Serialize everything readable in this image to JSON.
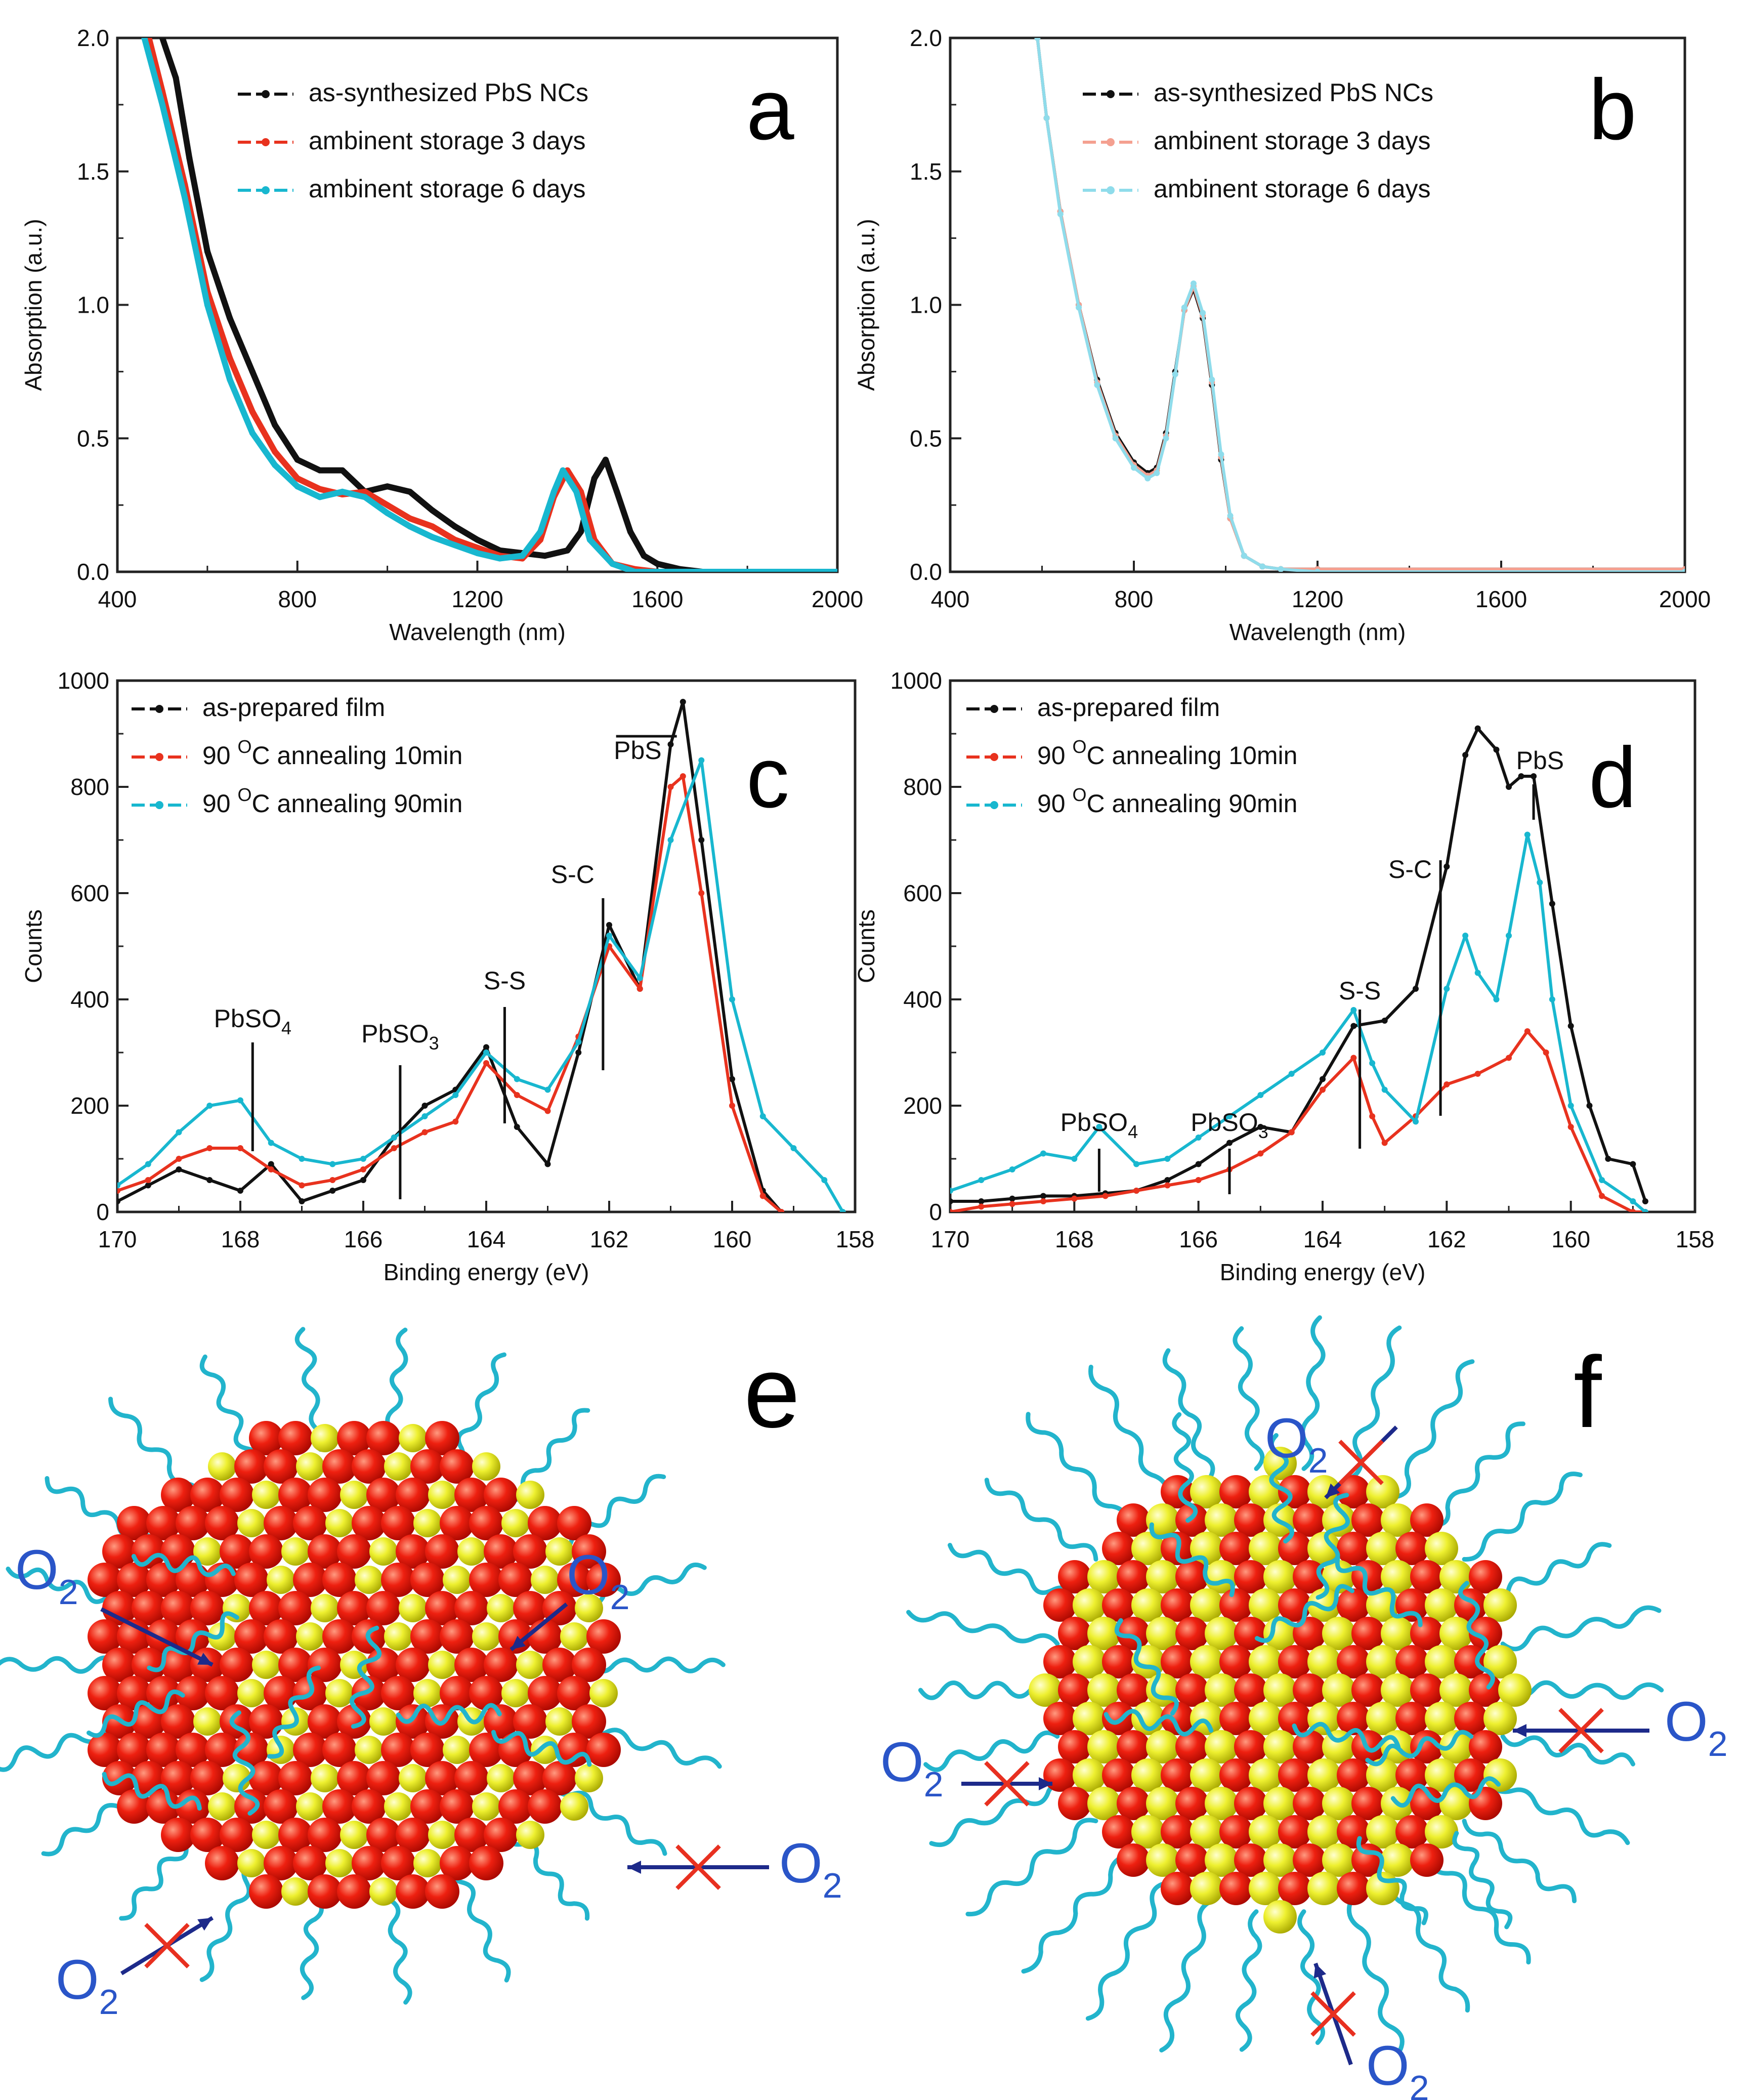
{
  "colors": {
    "black": "#111111",
    "red": "#e8321e",
    "cyan": "#18b7cf",
    "frame": "#222222",
    "pale_red": "#f4a090",
    "pale_cyan": "#8fdceb",
    "sphere_red": "#e8140c",
    "sphere_yellow": "#eef030",
    "arrow": "#1d2a8a",
    "o2_text": "#2a55c8"
  },
  "chart_data": [
    {
      "id": "a",
      "type": "line",
      "panel_label": "a",
      "xlabel": "Wavelength (nm)",
      "ylabel": "Absorption (a.u.)",
      "xlim": [
        400,
        2000
      ],
      "ylim": [
        0,
        2.0
      ],
      "x_ticks": [
        "400",
        "800",
        "1200",
        "1600",
        "2000"
      ],
      "y_ticks": [
        "0.0",
        "0.5",
        "1.0",
        "1.5",
        "2.0"
      ],
      "series": [
        {
          "name": "as-synthesized PbS NCs",
          "color": "black",
          "x": [
            500,
            530,
            560,
            600,
            650,
            700,
            750,
            800,
            850,
            900,
            950,
            1000,
            1050,
            1100,
            1150,
            1200,
            1250,
            1300,
            1350,
            1400,
            1430,
            1460,
            1485,
            1510,
            1540,
            1570,
            1600,
            1650,
            1700,
            2000
          ],
          "y": [
            2.0,
            1.85,
            1.55,
            1.2,
            0.95,
            0.75,
            0.55,
            0.42,
            0.38,
            0.38,
            0.3,
            0.32,
            0.3,
            0.23,
            0.17,
            0.12,
            0.08,
            0.07,
            0.06,
            0.08,
            0.15,
            0.35,
            0.42,
            0.3,
            0.15,
            0.06,
            0.03,
            0.01,
            0.0,
            0.0
          ]
        },
        {
          "name": "ambinent storage 3 days",
          "color": "red",
          "x": [
            470,
            500,
            550,
            600,
            650,
            700,
            750,
            800,
            850,
            900,
            950,
            1000,
            1050,
            1100,
            1150,
            1200,
            1250,
            1300,
            1340,
            1370,
            1400,
            1430,
            1460,
            1500,
            1550,
            1600,
            2000
          ],
          "y": [
            2.0,
            1.8,
            1.45,
            1.05,
            0.8,
            0.6,
            0.45,
            0.35,
            0.31,
            0.29,
            0.3,
            0.25,
            0.2,
            0.17,
            0.12,
            0.09,
            0.06,
            0.05,
            0.12,
            0.28,
            0.38,
            0.3,
            0.12,
            0.03,
            0.01,
            0.0,
            0.0
          ]
        },
        {
          "name": "ambinent storage 6 days",
          "color": "cyan",
          "x": [
            460,
            500,
            550,
            600,
            650,
            700,
            750,
            800,
            850,
            900,
            950,
            1000,
            1050,
            1100,
            1150,
            1200,
            1250,
            1300,
            1340,
            1370,
            1390,
            1420,
            1450,
            1500,
            1550,
            2000
          ],
          "y": [
            2.0,
            1.75,
            1.4,
            1.0,
            0.72,
            0.52,
            0.4,
            0.32,
            0.28,
            0.3,
            0.28,
            0.22,
            0.17,
            0.13,
            0.1,
            0.07,
            0.05,
            0.06,
            0.15,
            0.3,
            0.38,
            0.3,
            0.12,
            0.03,
            0.0,
            0.0
          ]
        }
      ]
    },
    {
      "id": "b",
      "type": "line",
      "panel_label": "b",
      "xlabel": "Wavelength (nm)",
      "ylabel": "Absorption (a.u.)",
      "xlim": [
        400,
        2000
      ],
      "ylim": [
        0,
        2.0
      ],
      "x_ticks": [
        "400",
        "800",
        "1200",
        "1600",
        "2000"
      ],
      "y_ticks": [
        "0.0",
        "0.5",
        "1.0",
        "1.5",
        "2.0"
      ],
      "series": [
        {
          "name": "as-synthesized PbS NCs",
          "color": "black",
          "x": [
            590,
            610,
            640,
            680,
            720,
            760,
            800,
            830,
            850,
            870,
            890,
            910,
            930,
            950,
            970,
            990,
            1010,
            1040,
            1080,
            1120,
            1200,
            2000
          ],
          "y": [
            2.0,
            1.7,
            1.35,
            1.0,
            0.72,
            0.52,
            0.41,
            0.37,
            0.39,
            0.52,
            0.75,
            0.98,
            1.06,
            0.95,
            0.7,
            0.42,
            0.2,
            0.06,
            0.02,
            0.01,
            0.01,
            0.01
          ]
        },
        {
          "name": "ambinent storage 3 days",
          "color": "pale_red",
          "x": [
            590,
            610,
            640,
            680,
            720,
            760,
            800,
            830,
            850,
            870,
            890,
            910,
            930,
            950,
            970,
            990,
            1010,
            1040,
            1080,
            1120,
            1200,
            2000
          ],
          "y": [
            2.0,
            1.7,
            1.35,
            1.0,
            0.71,
            0.51,
            0.4,
            0.36,
            0.38,
            0.51,
            0.74,
            0.98,
            1.07,
            0.96,
            0.71,
            0.43,
            0.2,
            0.06,
            0.02,
            0.01,
            0.01,
            0.01
          ]
        },
        {
          "name": "ambinent storage 6 days",
          "color": "pale_cyan",
          "x": [
            590,
            610,
            640,
            680,
            720,
            760,
            800,
            830,
            850,
            870,
            890,
            910,
            930,
            950,
            970,
            990,
            1010,
            1040,
            1080,
            1120,
            1200,
            2000
          ],
          "y": [
            2.0,
            1.7,
            1.34,
            0.99,
            0.7,
            0.5,
            0.39,
            0.35,
            0.37,
            0.5,
            0.74,
            0.99,
            1.08,
            0.97,
            0.72,
            0.44,
            0.21,
            0.06,
            0.02,
            0.01,
            0.0,
            0.0
          ]
        }
      ]
    },
    {
      "id": "c",
      "type": "line",
      "panel_label": "c",
      "xlabel": "Binding energy (eV)",
      "ylabel": "Counts",
      "xlim": [
        170,
        158
      ],
      "ylim": [
        0,
        1000
      ],
      "x_ticks": [
        "170",
        "168",
        "166",
        "164",
        "162",
        "160",
        "158"
      ],
      "y_ticks": [
        "0",
        "200",
        "400",
        "600",
        "800",
        "1000"
      ],
      "series": [
        {
          "name": "as-prepared film",
          "color": "black",
          "x": [
            170,
            169.5,
            169,
            168.5,
            168,
            167.5,
            167,
            166.5,
            166,
            165.5,
            165,
            164.5,
            164,
            163.5,
            163,
            162.5,
            162,
            161.5,
            161,
            160.8,
            160.5,
            160,
            159.5,
            159.2
          ],
          "y": [
            20,
            50,
            80,
            60,
            40,
            90,
            20,
            40,
            60,
            140,
            200,
            230,
            310,
            160,
            90,
            300,
            540,
            420,
            880,
            960,
            700,
            250,
            40,
            0
          ]
        },
        {
          "name": "90 OC annealing 10min",
          "color": "red",
          "x": [
            170,
            169.5,
            169,
            168.5,
            168,
            167.5,
            167,
            166.5,
            166,
            165.5,
            165,
            164.5,
            164,
            163.5,
            163,
            162.5,
            162,
            161.5,
            161,
            160.8,
            160.5,
            160,
            159.5,
            159.2
          ],
          "y": [
            40,
            60,
            100,
            120,
            120,
            80,
            50,
            60,
            80,
            120,
            150,
            170,
            280,
            220,
            190,
            330,
            500,
            420,
            800,
            820,
            600,
            200,
            30,
            0
          ]
        },
        {
          "name": "90 OC annealing 90min",
          "color": "cyan",
          "x": [
            170,
            169.5,
            169,
            168.5,
            168,
            167.5,
            167,
            166.5,
            166,
            165.5,
            165,
            164.5,
            164,
            163.5,
            163,
            162.5,
            162,
            161.5,
            161,
            160.5,
            160,
            159.5,
            159,
            158.5,
            158.2
          ],
          "y": [
            50,
            90,
            150,
            200,
            210,
            130,
            100,
            90,
            100,
            140,
            180,
            220,
            300,
            250,
            230,
            320,
            520,
            440,
            700,
            850,
            400,
            180,
            120,
            60,
            0
          ]
        }
      ],
      "annotations": [
        {
          "label": "PbSO",
          "sub": "4",
          "x": 167.8
        },
        {
          "label": "PbSO",
          "sub": "3",
          "x": 165.4
        },
        {
          "label": "S-S",
          "sub": "",
          "x": 163.7
        },
        {
          "label": "S-C",
          "sub": "",
          "x": 162.1
        },
        {
          "label": "PbS",
          "sub": "",
          "x": 160.9
        }
      ]
    },
    {
      "id": "d",
      "type": "line",
      "panel_label": "d",
      "xlabel": "Binding energy (eV)",
      "ylabel": "Counts",
      "xlim": [
        170,
        158
      ],
      "ylim": [
        0,
        1000
      ],
      "x_ticks": [
        "170",
        "168",
        "166",
        "164",
        "162",
        "160",
        "158"
      ],
      "y_ticks": [
        "0",
        "200",
        "400",
        "600",
        "800",
        "1000"
      ],
      "series": [
        {
          "name": "as-prepared film",
          "color": "black",
          "x": [
            170,
            169.5,
            169,
            168.5,
            168,
            167.5,
            167,
            166.5,
            166,
            165.5,
            165,
            164.5,
            164,
            163.5,
            163,
            162.5,
            162,
            161.7,
            161.5,
            161.2,
            161,
            160.8,
            160.6,
            160.3,
            160,
            159.7,
            159.4,
            159,
            158.8
          ],
          "y": [
            20,
            20,
            25,
            30,
            30,
            35,
            40,
            60,
            90,
            130,
            160,
            150,
            250,
            350,
            360,
            420,
            650,
            860,
            910,
            870,
            800,
            820,
            820,
            580,
            350,
            200,
            100,
            90,
            20
          ]
        },
        {
          "name": "90 OC annealing 10min",
          "color": "red",
          "x": [
            170,
            169.5,
            169,
            168.5,
            168,
            167.5,
            167,
            166.5,
            166,
            165.5,
            165,
            164.5,
            164,
            163.5,
            163.2,
            163,
            162.5,
            162,
            161.5,
            161,
            160.7,
            160.4,
            160,
            159.5,
            159,
            158.8
          ],
          "y": [
            0,
            10,
            15,
            20,
            25,
            30,
            40,
            50,
            60,
            80,
            110,
            150,
            230,
            290,
            180,
            130,
            180,
            240,
            260,
            290,
            340,
            300,
            160,
            30,
            0,
            0
          ]
        },
        {
          "name": "90 OC annealing 90min",
          "color": "cyan",
          "x": [
            170,
            169.5,
            169,
            168.5,
            168,
            167.6,
            167,
            166.5,
            166,
            165.5,
            165,
            164.5,
            164,
            163.5,
            163.2,
            163,
            162.5,
            162,
            161.7,
            161.5,
            161.2,
            161,
            160.7,
            160.5,
            160.3,
            160,
            159.5,
            159,
            158.8
          ],
          "y": [
            40,
            60,
            80,
            110,
            100,
            160,
            90,
            100,
            140,
            180,
            220,
            260,
            300,
            380,
            280,
            230,
            170,
            420,
            520,
            450,
            400,
            520,
            710,
            620,
            400,
            200,
            60,
            20,
            0
          ]
        }
      ],
      "annotations": [
        {
          "label": "PbSO",
          "sub": "4",
          "x": 167.6
        },
        {
          "label": "PbSO",
          "sub": "3",
          "x": 165.5
        },
        {
          "label": "S-S",
          "sub": "",
          "x": 163.4
        },
        {
          "label": "S-C",
          "sub": "",
          "x": 162.1
        },
        {
          "label": "PbS",
          "sub": "",
          "x": 160.6
        }
      ]
    }
  ],
  "illustrations": {
    "e": {
      "label": "e",
      "molecule": "O",
      "subscript": "2",
      "blocked_marker": "X"
    },
    "f": {
      "label": "f",
      "molecule": "O",
      "subscript": "2",
      "blocked_marker": "X"
    }
  }
}
